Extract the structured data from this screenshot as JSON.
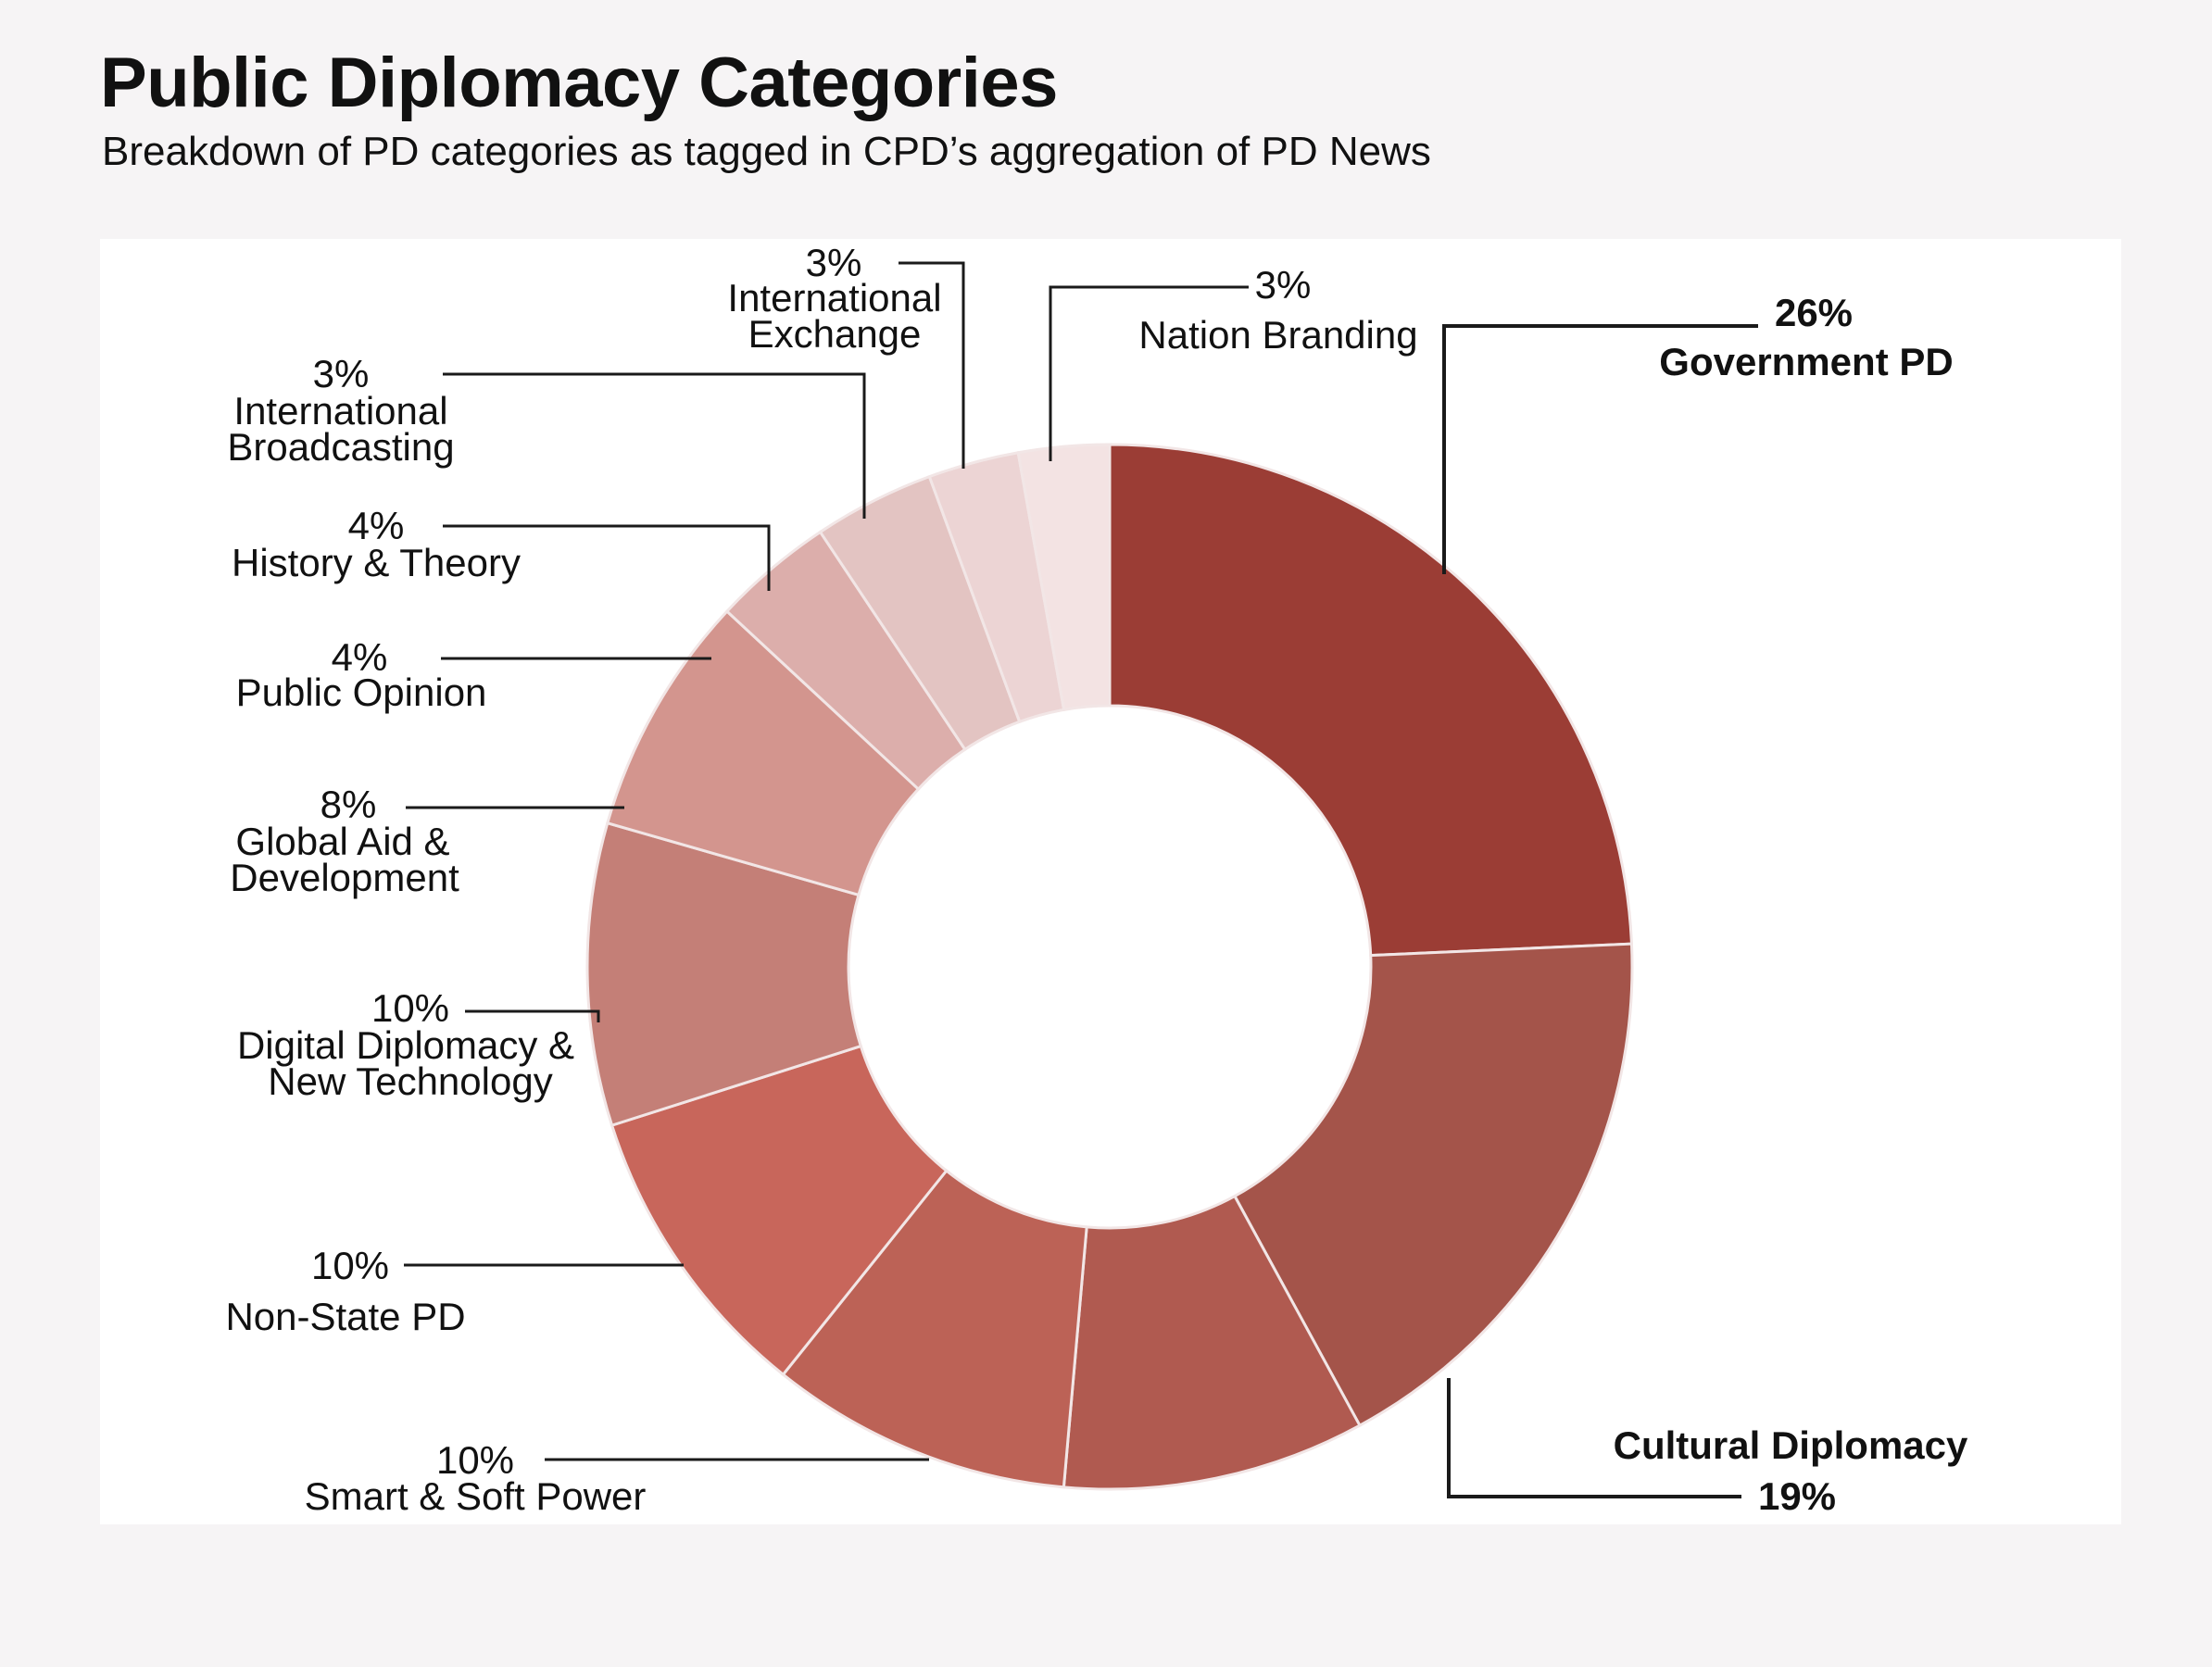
{
  "title": "Public Diplomacy Categories",
  "subtitle": "Breakdown of PD categories as tagged in CPD’s aggregation of PD News",
  "chart_data": {
    "type": "pie",
    "donut": true,
    "title": "Public Diplomacy Categories",
    "subtitle": "Breakdown of PD categories as tagged in CPD’s aggregation of PD News",
    "legend": "none",
    "slices": [
      {
        "name": "Government PD",
        "value": 26,
        "label": "26%",
        "color": "#9b3d35"
      },
      {
        "name": "Cultural Diplomacy",
        "value": 19,
        "label": "19%",
        "color": "#a4544a"
      },
      {
        "name": "",
        "value": 10,
        "label": "",
        "color": "#b05a50"
      },
      {
        "name": "Smart & Soft Power",
        "value": 10,
        "label": "10%",
        "color": "#bc6256"
      },
      {
        "name": "Non-State PD",
        "value": 10,
        "label": "10%",
        "color": "#c8665b"
      },
      {
        "name": "Digital Diplomacy & New Technology",
        "value": 10,
        "label": "10%",
        "color": "#c47f77"
      },
      {
        "name": "Global Aid & Development",
        "value": 8,
        "label": "8%",
        "color": "#d3958e"
      },
      {
        "name": "Public Opinion",
        "value": 4,
        "label": "4%",
        "color": "#dcaeab"
      },
      {
        "name": "History & Theory",
        "value": 4,
        "label": "4%",
        "color": "#e3c4c2"
      },
      {
        "name": "International Broadcasting",
        "value": 3,
        "label": "3%",
        "color": "#ecd4d4"
      },
      {
        "name": "International Exchange",
        "value": 3,
        "label": "3%",
        "color": "#f3e3e3"
      }
    ],
    "extra_labels": [
      {
        "name": "Nation Branding",
        "label": "3%"
      }
    ]
  }
}
